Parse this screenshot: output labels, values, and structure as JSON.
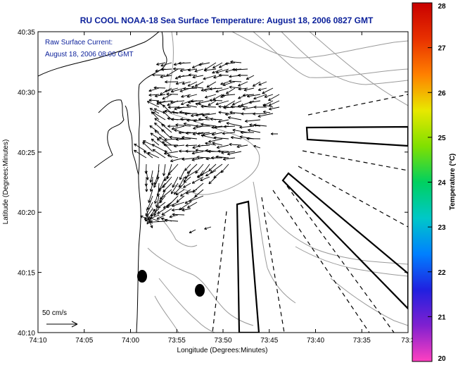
{
  "title": "RU COOL  NOAA-18  Sea Surface Temperature:  August 18, 2006 0827 GMT",
  "annotation": {
    "line1": "Raw Surface Current:",
    "line2": "August 18, 2006 08:00 GMT"
  },
  "scale_label": "50 cm/s",
  "x_axis": {
    "label": "Longitude (Degrees:Minutes)",
    "ticks": [
      "74:10",
      "74:05",
      "74:00",
      "73:55",
      "73:50",
      "73:45",
      "73:40",
      "73:35",
      "73:3"
    ]
  },
  "y_axis": {
    "label": "Latitude (Degrees:Minutes)",
    "ticks": [
      "40:35",
      "40:30",
      "40:25",
      "40:20",
      "40:15",
      "40:10"
    ]
  },
  "colorbar": {
    "label": "Temperature (°C)",
    "ticks": [
      "28",
      "27",
      "26",
      "25",
      "24",
      "23",
      "22",
      "21",
      "20"
    ],
    "colors": [
      "#c80000",
      "#e83000",
      "#ff8000",
      "#e8e800",
      "#80e000",
      "#00d060",
      "#00c8c8",
      "#0080ff",
      "#2020e0",
      "#8020d0",
      "#ff40c0"
    ]
  }
}
